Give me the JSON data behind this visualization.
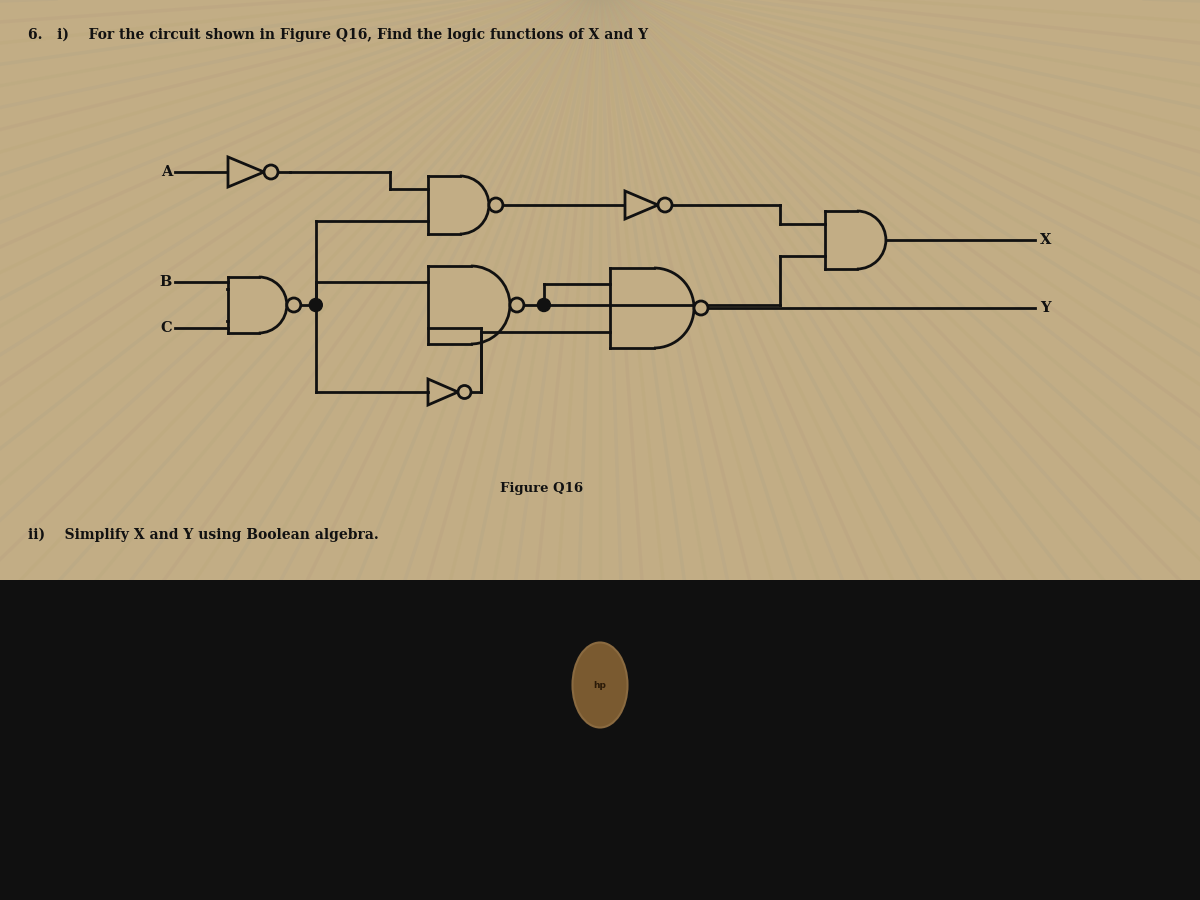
{
  "title": "6.   i)    For the circuit shown in Figure Q16, Find the logic functions of X and Y",
  "subtitle": "ii)    Simplify X and Y using Boolean algebra.",
  "figure_label": "Figure Q16",
  "bg_top_color": "#c2ad85",
  "bg_bottom_color": "#101010",
  "stripe_colors": [
    "#8a9a60",
    "#7080a0",
    "#906070",
    "#a09050",
    "#608090"
  ],
  "line_color": "#111111",
  "text_color": "#111111",
  "gate_fill": "#c2ad85",
  "hp_color": "#7a5a30"
}
